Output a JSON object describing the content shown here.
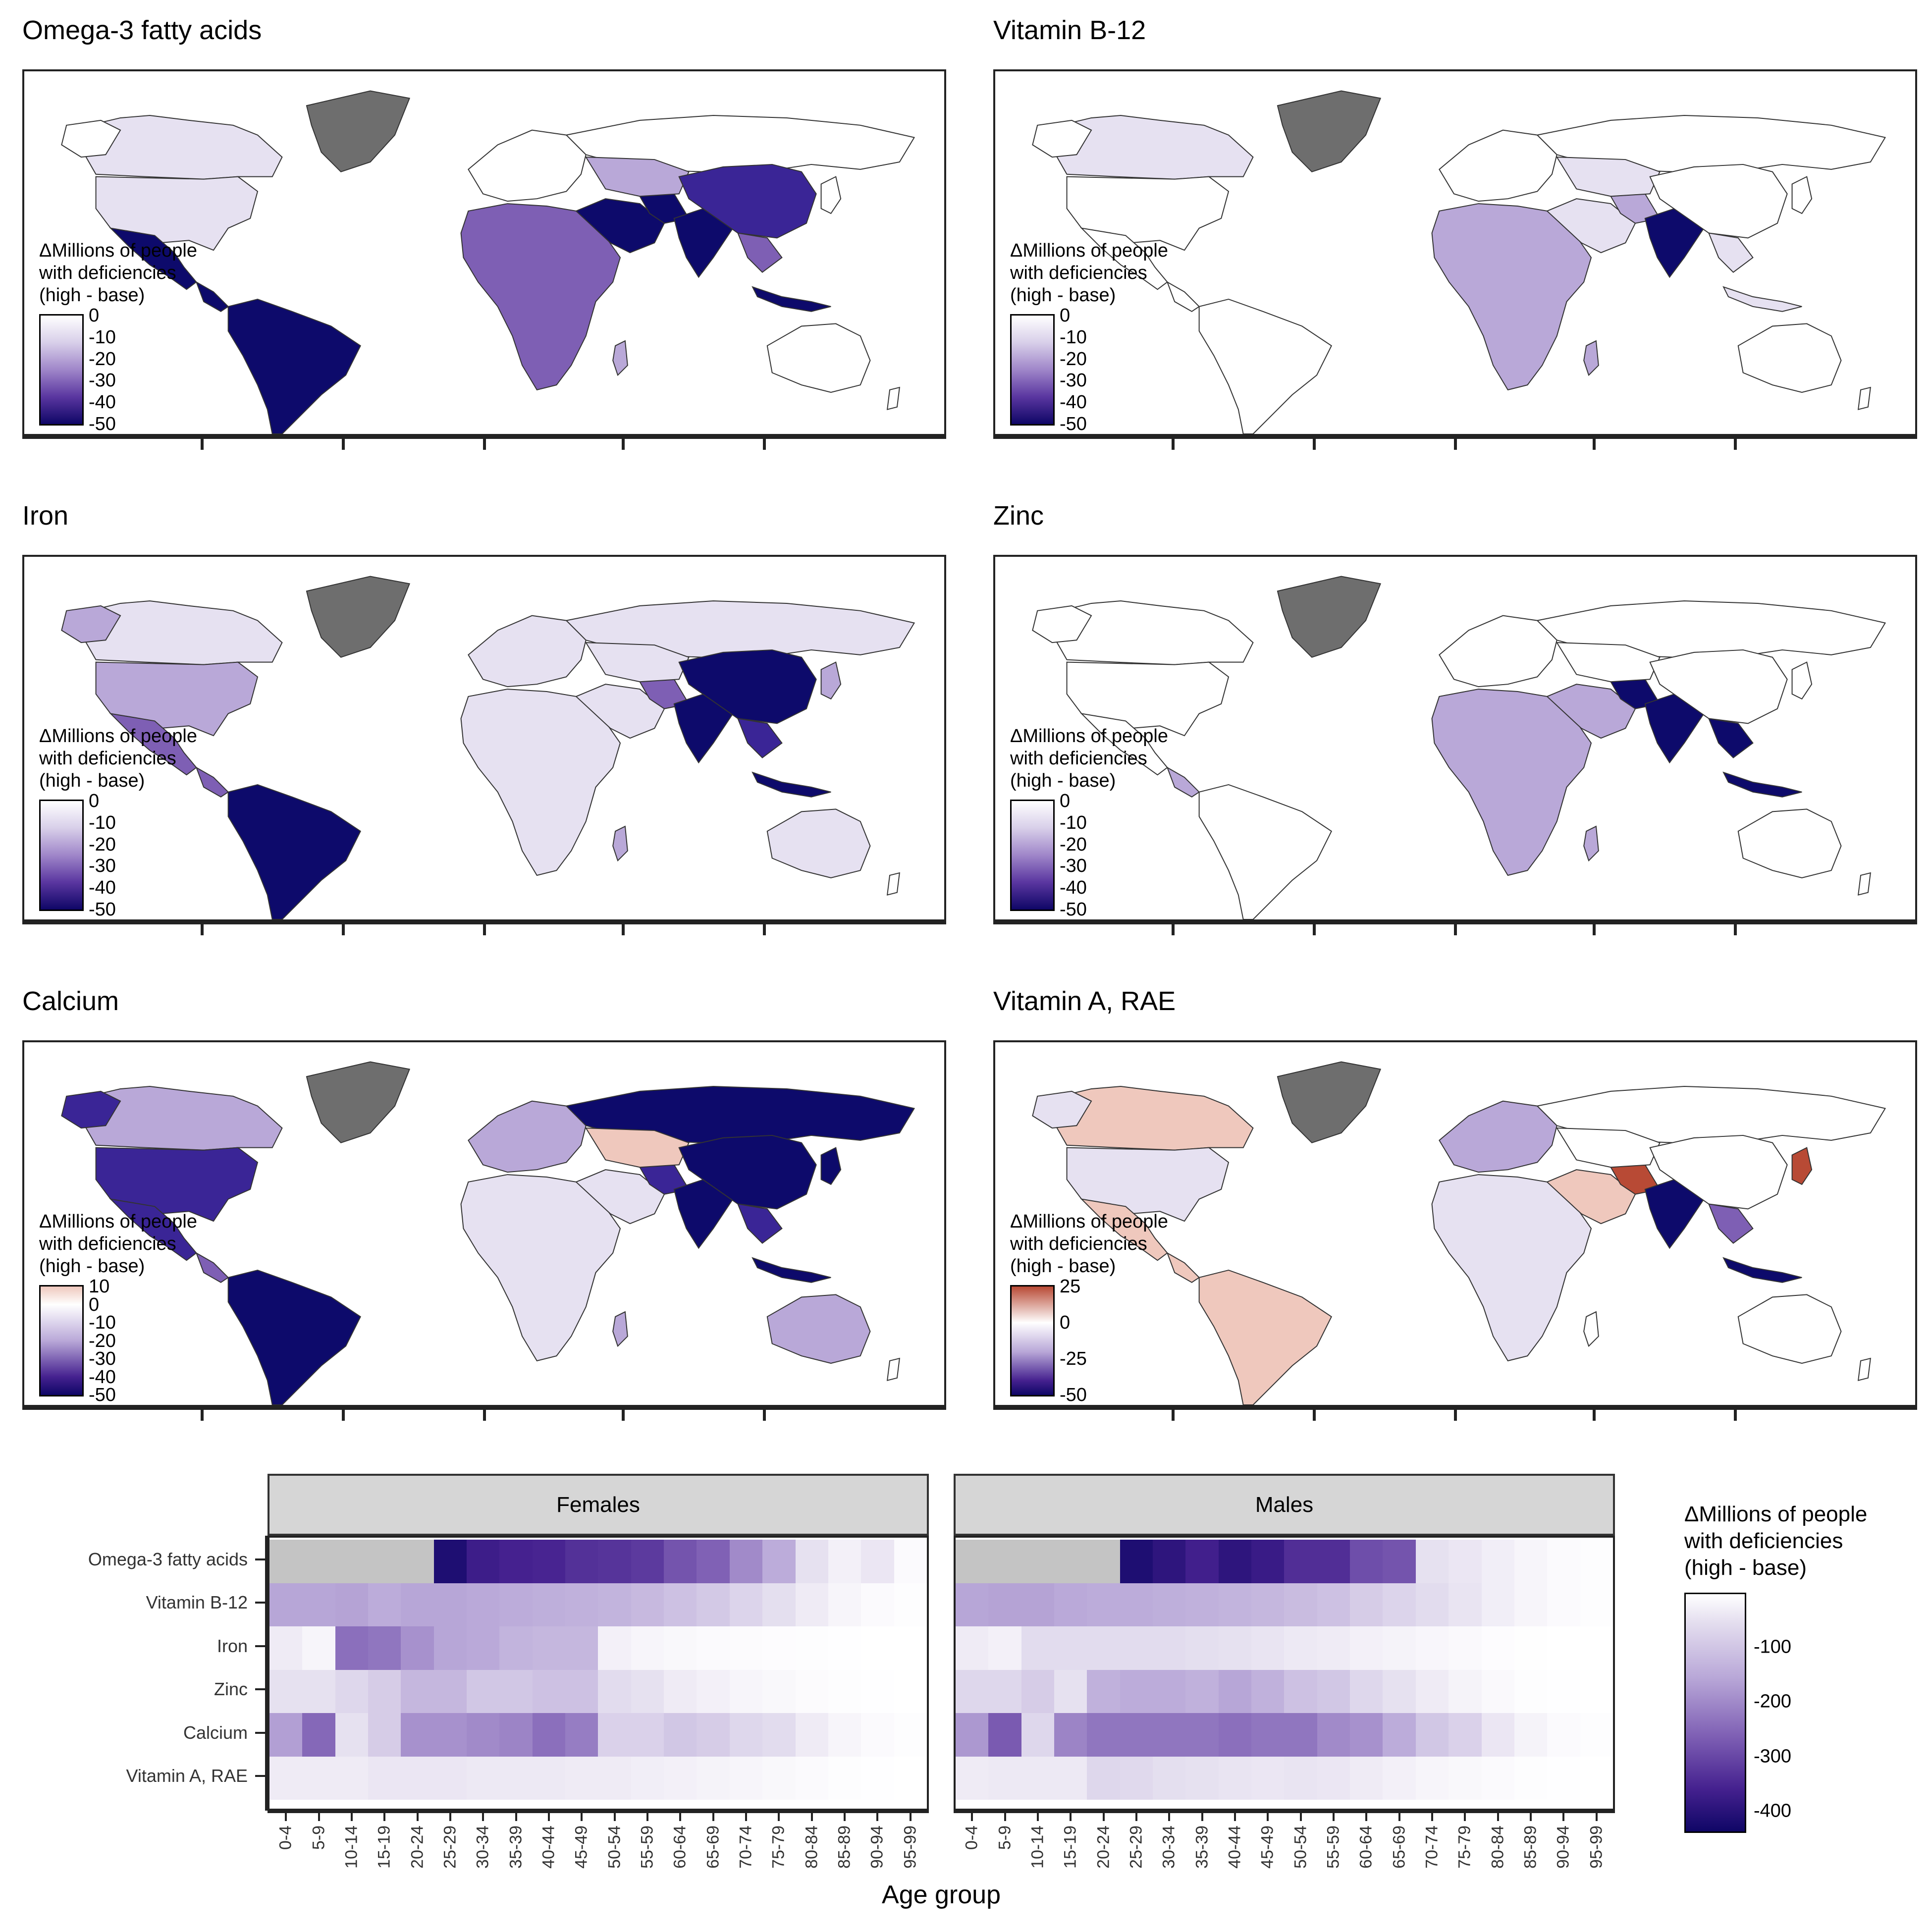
{
  "colors": {
    "land_default": "#ffffff",
    "greenland": "#6e6e6e",
    "deep": "#0d0a6b",
    "dark": "#3a2596",
    "mid": "#7e5fb4",
    "light": "#b9a8d8",
    "pale": "#e6e1f1",
    "pink": "#efc8bd",
    "red": "#b84a35",
    "na_grey": "#c4c4c4"
  },
  "maps": [
    {
      "title": "Omega-3 fatty acids",
      "legend": {
        "title": [
          "ΔMillions of people",
          "with deficiencies",
          "(high - base)"
        ],
        "ticks": [
          "0",
          "-10",
          "-20",
          "-30",
          "-40",
          "-50"
        ],
        "min": -50,
        "max": 0
      }
    },
    {
      "title": "Vitamin B-12",
      "legend": {
        "title": [
          "ΔMillions of people",
          "with deficiencies",
          "(high - base)"
        ],
        "ticks": [
          "0",
          "-10",
          "-20",
          "-30",
          "-40",
          "-50"
        ],
        "min": -50,
        "max": 0
      }
    },
    {
      "title": "Iron",
      "legend": {
        "title": [
          "ΔMillions of people",
          "with deficiencies",
          "(high - base)"
        ],
        "ticks": [
          "0",
          "-10",
          "-20",
          "-30",
          "-40",
          "-50"
        ],
        "min": -50,
        "max": 0
      }
    },
    {
      "title": "Zinc",
      "legend": {
        "title": [
          "ΔMillions of people",
          "with deficiencies",
          "(high - base)"
        ],
        "ticks": [
          "0",
          "-10",
          "-20",
          "-30",
          "-40",
          "-50"
        ],
        "min": -50,
        "max": 0
      }
    },
    {
      "title": "Calcium",
      "legend": {
        "title": [
          "ΔMillions of people",
          "with deficiencies",
          "(high - base)"
        ],
        "ticks": [
          "10",
          "0",
          "-10",
          "-20",
          "-30",
          "-40",
          "-50"
        ],
        "min": -50,
        "max": 10
      }
    },
    {
      "title": "Vitamin A, RAE",
      "legend": {
        "title": [
          "ΔMillions of people",
          "with deficiencies",
          "(high - base)"
        ],
        "ticks": [
          "25",
          "0",
          "-25",
          "-50"
        ],
        "min": -50,
        "max": 25
      }
    }
  ],
  "chart_data": {
    "type": "heatmap",
    "facets": [
      "Females",
      "Males"
    ],
    "rows": [
      "Omega-3 fatty acids",
      "Vitamin B-12",
      "Iron",
      "Zinc",
      "Calcium",
      "Vitamin A, RAE"
    ],
    "age_groups": [
      "0-4",
      "5-9",
      "10-14",
      "15-19",
      "20-24",
      "25-29",
      "30-34",
      "35-39",
      "40-44",
      "45-49",
      "50-54",
      "55-59",
      "60-64",
      "65-69",
      "70-74",
      "75-79",
      "80-84",
      "85-89",
      "90-94",
      "95-99"
    ],
    "xlabel": "Age group",
    "legend": {
      "title": [
        "ΔMillions of people",
        "with deficiencies",
        "(high - base)"
      ],
      "ticks": [
        "-100",
        "-200",
        "-300",
        "-400"
      ],
      "min": -440,
      "max": 0
    },
    "values": {
      "Females": [
        [
          null,
          null,
          null,
          null,
          null,
          -420,
          -380,
          -370,
          -365,
          -345,
          -340,
          -330,
          -290,
          -270,
          -210,
          -160,
          -60,
          -30,
          -50,
          -10
        ],
        [
          -170,
          -170,
          -175,
          -160,
          -170,
          -170,
          -165,
          -160,
          -155,
          -150,
          -145,
          -135,
          -120,
          -105,
          -85,
          -65,
          -40,
          -20,
          -10,
          -5
        ],
        [
          -40,
          -20,
          -250,
          -240,
          -200,
          -170,
          -165,
          -145,
          -140,
          -140,
          -30,
          -20,
          -15,
          -10,
          -8,
          -6,
          -4,
          -2,
          -1,
          -1
        ],
        [
          -60,
          -60,
          -80,
          -100,
          -140,
          -140,
          -110,
          -110,
          -120,
          -120,
          -70,
          -60,
          -40,
          -30,
          -20,
          -15,
          -8,
          -4,
          -2,
          -1
        ],
        [
          -180,
          -260,
          -60,
          -100,
          -200,
          -200,
          -210,
          -220,
          -250,
          -230,
          -90,
          -90,
          -110,
          -100,
          -80,
          -70,
          -40,
          -20,
          -10,
          -5
        ],
        [
          -40,
          -40,
          -40,
          -50,
          -50,
          -50,
          -45,
          -45,
          -45,
          -40,
          -40,
          -35,
          -30,
          -25,
          -20,
          -15,
          -10,
          -5,
          -2,
          -1
        ]
      ],
      "Males": [
        [
          null,
          null,
          null,
          null,
          null,
          -420,
          -400,
          -375,
          -400,
          -385,
          -350,
          -350,
          -300,
          -290,
          -60,
          -50,
          -35,
          -20,
          -10,
          -5
        ],
        [
          -170,
          -175,
          -175,
          -165,
          -160,
          -160,
          -155,
          -150,
          -145,
          -140,
          -130,
          -120,
          -100,
          -85,
          -70,
          -55,
          -35,
          -20,
          -10,
          -5
        ],
        [
          -40,
          -30,
          -70,
          -70,
          -70,
          -70,
          -70,
          -65,
          -60,
          -55,
          -45,
          -40,
          -30,
          -25,
          -18,
          -12,
          -6,
          -3,
          -1,
          -1
        ],
        [
          -80,
          -80,
          -100,
          -60,
          -150,
          -160,
          -160,
          -150,
          -170,
          -150,
          -120,
          -110,
          -80,
          -60,
          -40,
          -25,
          -12,
          -5,
          -2,
          -1
        ],
        [
          -190,
          -280,
          -80,
          -220,
          -240,
          -240,
          -240,
          -240,
          -250,
          -240,
          -240,
          -210,
          -200,
          -160,
          -110,
          -90,
          -50,
          -25,
          -10,
          -5
        ],
        [
          -40,
          -45,
          -45,
          -45,
          -80,
          -75,
          -65,
          -60,
          -55,
          -50,
          -55,
          -50,
          -40,
          -30,
          -20,
          -15,
          -10,
          -5,
          -2,
          -1
        ]
      ]
    }
  }
}
